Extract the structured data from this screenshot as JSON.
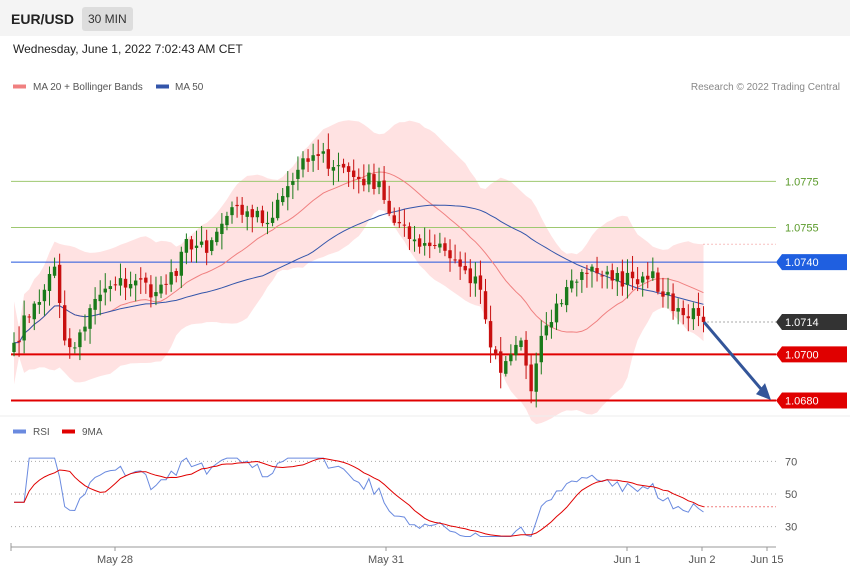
{
  "header": {
    "symbol": "EUR/USD",
    "timeframe": "30 MIN",
    "datetime": "Wednesday, June 1, 2022 7:02:43 AM CET"
  },
  "legend": {
    "ma20_label": "MA 20 + Bollinger Bands",
    "ma50_label": "MA 50",
    "credit": "Research © 2022 Trading Central",
    "rsi_label": "RSI",
    "ma9_label": "9MA"
  },
  "colors": {
    "ma20": "#f08080",
    "ma50": "#3355aa",
    "band": "#ffd6d6",
    "up": "#1a7a1a",
    "down": "#c81010",
    "resistance": "#9ec870",
    "pivot": "#2255dd",
    "support": "#e00000",
    "current": "#333333",
    "rsi": "#6a8adf",
    "ma9": "#e00000",
    "arrow": "#335599"
  },
  "chart_data": [
    {
      "type": "candlestick",
      "yrange": [
        1.0675,
        1.0812
      ],
      "xlabels": [
        "May 28",
        "May 31",
        "Jun 1",
        "Jun 2",
        "Jun 15"
      ],
      "levels": [
        {
          "value": 1.0775,
          "label": "1.0775",
          "kind": "resistance"
        },
        {
          "value": 1.0755,
          "label": "1.0755",
          "kind": "resistance"
        },
        {
          "value": 1.074,
          "label": "1.0740",
          "kind": "pivot"
        },
        {
          "value": 1.0714,
          "label": "1.0714",
          "kind": "current"
        },
        {
          "value": 1.07,
          "label": "1.0700",
          "kind": "support"
        },
        {
          "value": 1.068,
          "label": "1.0680",
          "kind": "support"
        }
      ],
      "close_anchors": [
        [
          0,
          1.0705
        ],
        [
          4,
          1.0722
        ],
        [
          6,
          1.0728
        ],
        [
          8,
          1.0738
        ],
        [
          10,
          1.0706
        ],
        [
          12,
          1.0703
        ],
        [
          14,
          1.0712
        ],
        [
          16,
          1.0724
        ],
        [
          20,
          1.073
        ],
        [
          24,
          1.0732
        ],
        [
          28,
          1.0727
        ],
        [
          32,
          1.0734
        ],
        [
          34,
          1.075
        ],
        [
          38,
          1.0744
        ],
        [
          42,
          1.076
        ],
        [
          46,
          1.0762
        ],
        [
          50,
          1.0757
        ],
        [
          52,
          1.0767
        ],
        [
          56,
          1.078
        ],
        [
          60,
          1.0786
        ],
        [
          64,
          1.0782
        ],
        [
          68,
          1.0776
        ],
        [
          72,
          1.0775
        ],
        [
          74,
          1.0761
        ],
        [
          78,
          1.075
        ],
        [
          84,
          1.0748
        ],
        [
          88,
          1.0738
        ],
        [
          92,
          1.0728
        ],
        [
          94,
          1.0703
        ],
        [
          96,
          1.0692
        ],
        [
          98,
          1.07
        ],
        [
          100,
          1.0706
        ],
        [
          102,
          1.0684
        ],
        [
          104,
          1.0708
        ],
        [
          106,
          1.0714
        ],
        [
          110,
          1.0732
        ],
        [
          114,
          1.0738
        ],
        [
          118,
          1.0732
        ],
        [
          122,
          1.0733
        ],
        [
          126,
          1.0736
        ],
        [
          128,
          1.0725
        ],
        [
          132,
          1.0717
        ],
        [
          134,
          1.072
        ],
        [
          136,
          1.0714
        ]
      ]
    },
    {
      "type": "line",
      "title": "RSI",
      "yticks": [
        70,
        50,
        30
      ],
      "yrange": [
        20,
        80
      ]
    }
  ]
}
